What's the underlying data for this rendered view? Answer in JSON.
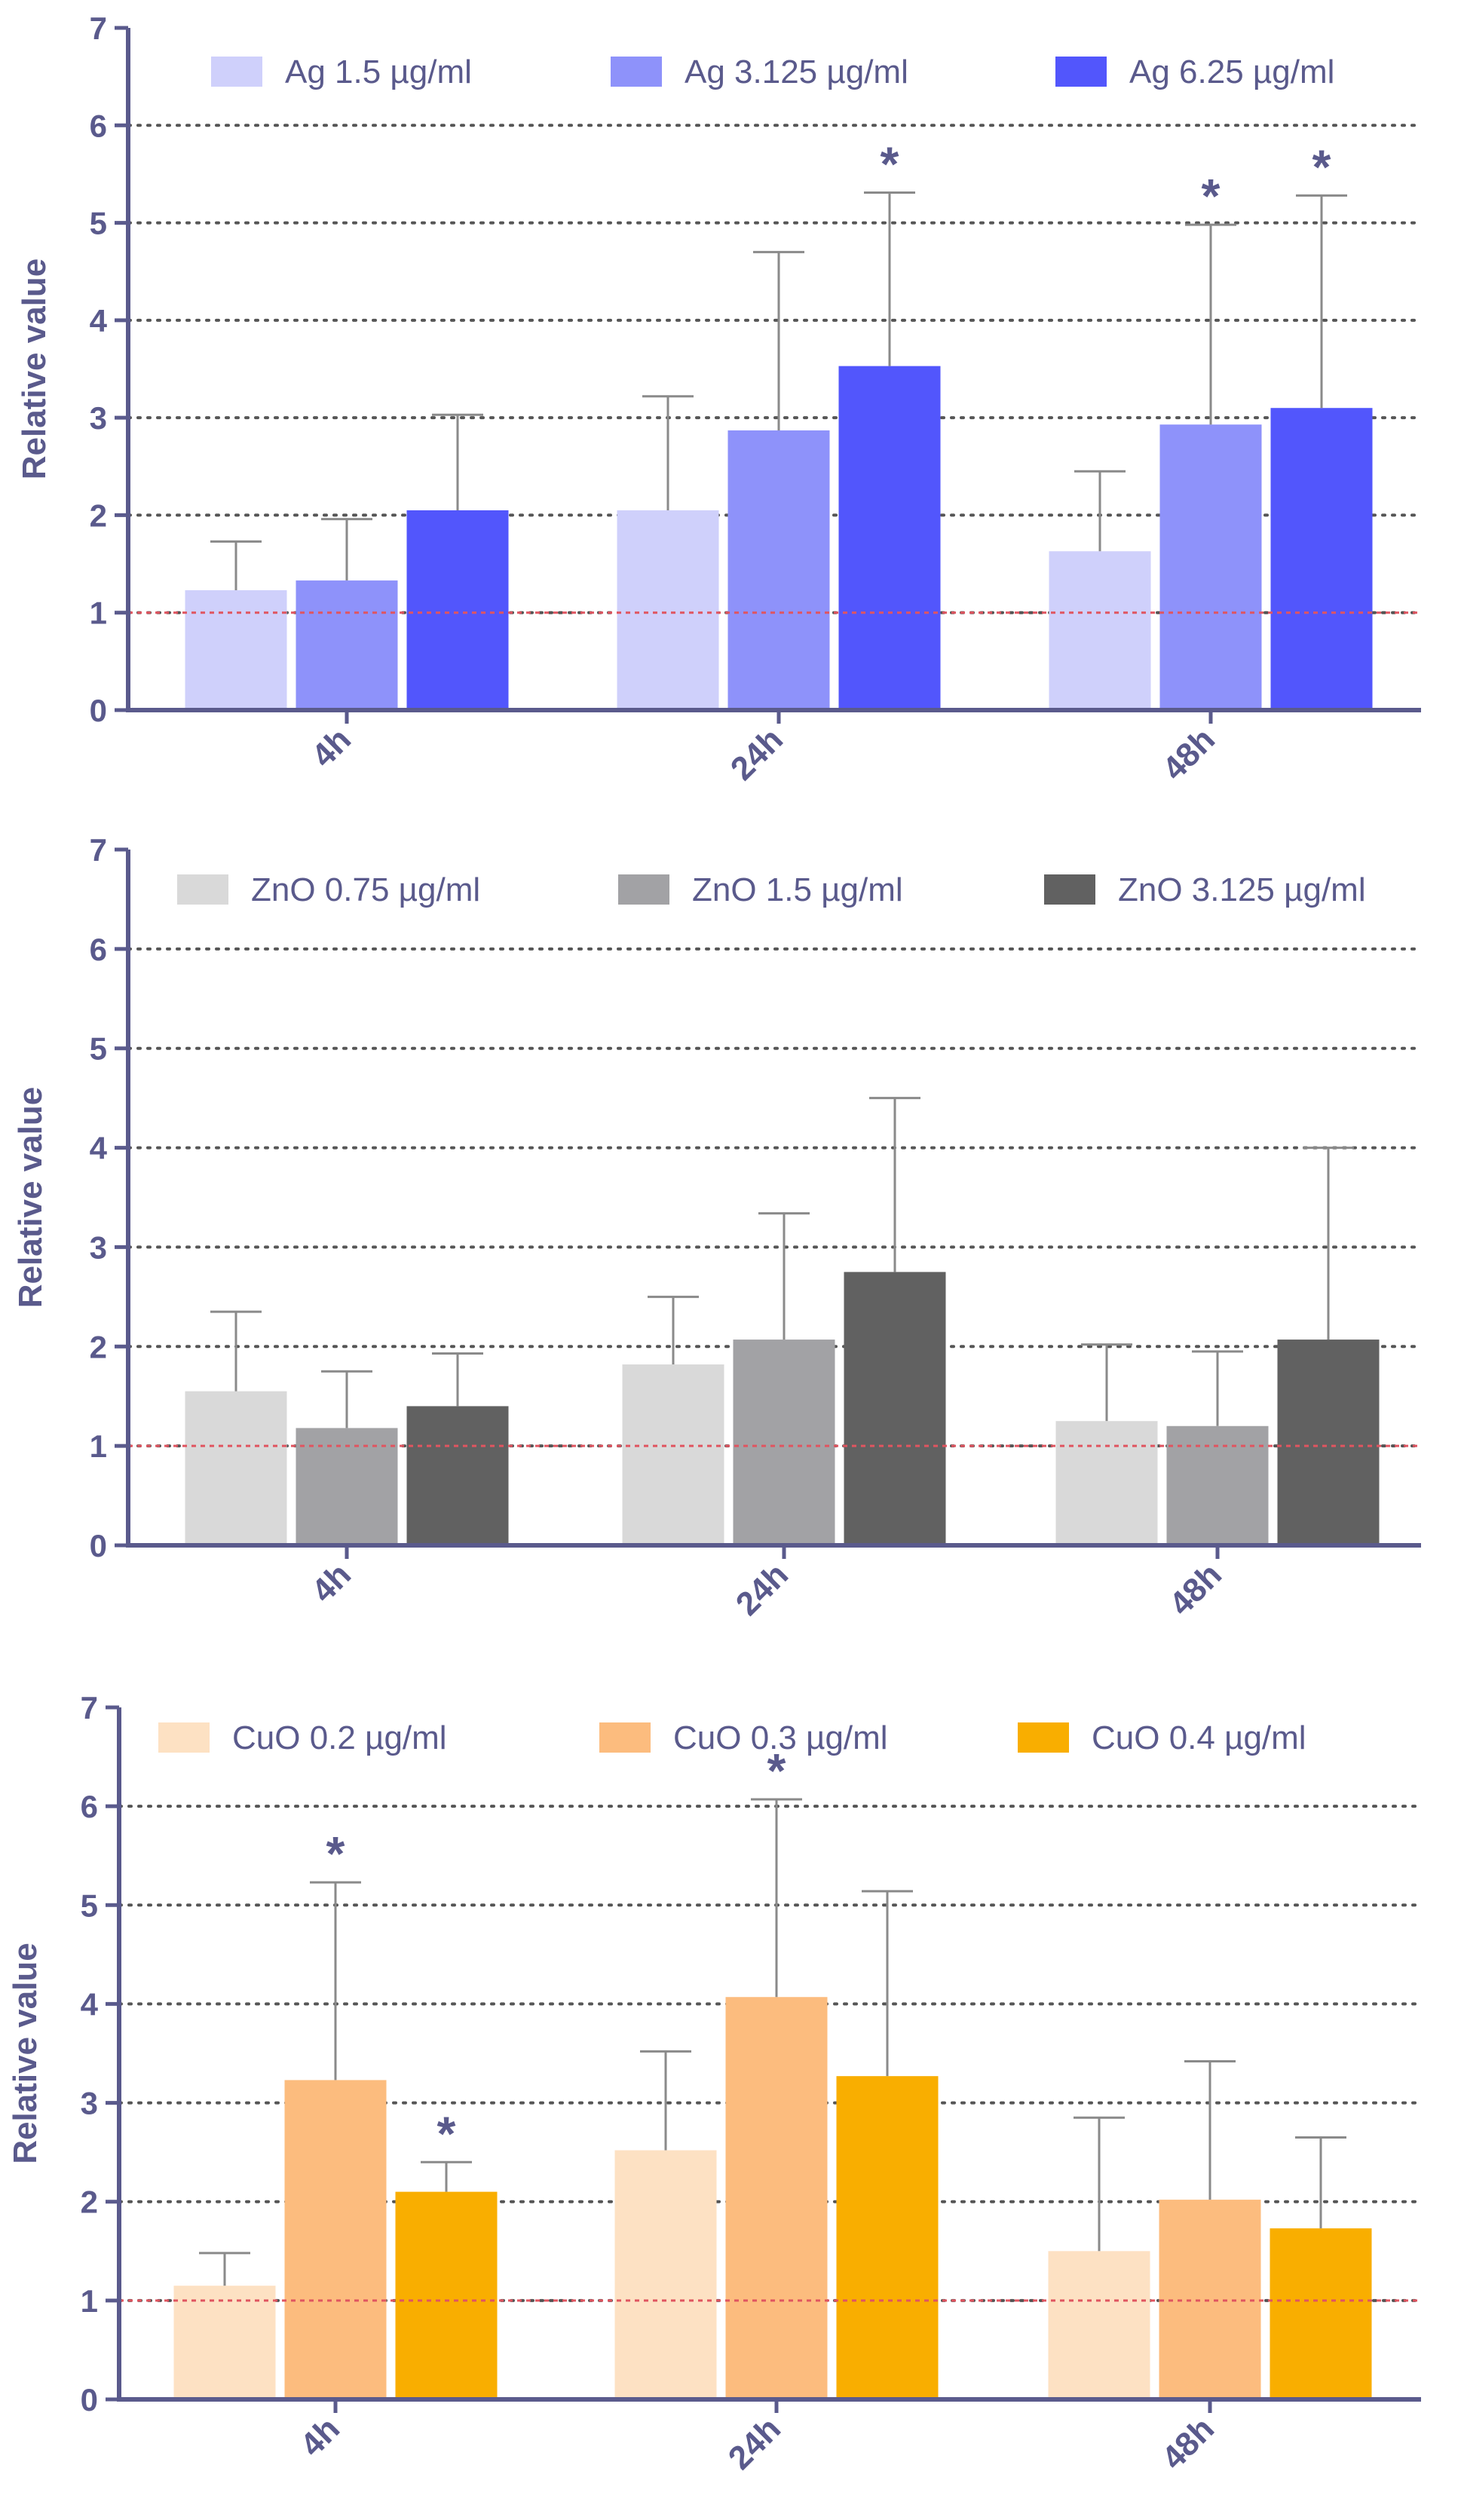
{
  "colors": {
    "axis": "#5a5a8c",
    "grid": "#555555",
    "reference_line": "#e05560",
    "error_bar": "#8a8a8a"
  },
  "chart_data": [
    {
      "type": "bar",
      "ylabel": "Relative value",
      "ylim": [
        0,
        7
      ],
      "yticks": [
        "0",
        "1",
        "2",
        "3",
        "4",
        "5",
        "6",
        "7"
      ],
      "grid": "dotted horizontal",
      "reference_value": 1,
      "legend_position": "top",
      "categories": [
        "4h",
        "24h",
        "48h"
      ],
      "series": [
        {
          "name": "Ag 1.5 µg/ml",
          "color": "#cfd0fb",
          "values": [
            1.23,
            2.05,
            1.63
          ],
          "errors": [
            0.5,
            1.17,
            0.82
          ],
          "significance": [
            "",
            "",
            ""
          ]
        },
        {
          "name": "Ag 3.125 µg/ml",
          "color": "#8e92fa",
          "values": [
            1.33,
            2.87,
            2.93
          ],
          "errors": [
            0.63,
            1.83,
            2.05
          ],
          "significance": [
            "",
            "",
            "*"
          ]
        },
        {
          "name": "Ag 6.25 µg/ml",
          "color": "#5256fc",
          "values": [
            2.05,
            3.53,
            3.1
          ],
          "errors": [
            0.98,
            1.78,
            2.18
          ],
          "significance": [
            "",
            "*",
            "*"
          ]
        }
      ]
    },
    {
      "type": "bar",
      "ylabel": "Relative value",
      "ylim": [
        0,
        7
      ],
      "yticks": [
        "0",
        "1",
        "2",
        "3",
        "4",
        "5",
        "6",
        "7"
      ],
      "grid": "dotted horizontal",
      "reference_value": 1,
      "legend_position": "top",
      "categories": [
        "4h",
        "24h",
        "48h"
      ],
      "series": [
        {
          "name": "ZnO 0.75 µg/ml",
          "color": "#d9d9d9",
          "values": [
            1.55,
            1.82,
            1.25
          ],
          "errors": [
            0.8,
            0.68,
            0.77
          ],
          "significance": [
            "",
            "",
            ""
          ]
        },
        {
          "name": "ZnO 1.5 µg/ml",
          "color": "#a2a2a5",
          "values": [
            1.18,
            2.07,
            1.2
          ],
          "errors": [
            0.57,
            1.27,
            0.75
          ],
          "significance": [
            "",
            "",
            ""
          ]
        },
        {
          "name": "ZnO 3.125 µg/ml",
          "color": "#616161",
          "values": [
            1.4,
            2.75,
            2.07
          ],
          "errors": [
            0.53,
            1.75,
            1.93
          ],
          "significance": [
            "",
            "",
            ""
          ]
        }
      ]
    },
    {
      "type": "bar",
      "ylabel": "Relative value",
      "ylim": [
        0,
        7
      ],
      "yticks": [
        "0",
        "1",
        "2",
        "3",
        "4",
        "5",
        "6",
        "7"
      ],
      "grid": "dotted horizontal",
      "reference_value": 1,
      "legend_position": "top",
      "categories": [
        "4h",
        "24h",
        "48h"
      ],
      "series": [
        {
          "name": "CuO 0.2 µg/ml",
          "color": "#fde1c3",
          "values": [
            1.15,
            2.52,
            1.5
          ],
          "errors": [
            0.33,
            1.0,
            1.35
          ],
          "significance": [
            "",
            "",
            ""
          ]
        },
        {
          "name": "CuO 0.3 µg/ml",
          "color": "#fcbc7e",
          "values": [
            3.23,
            4.07,
            2.02
          ],
          "errors": [
            2.0,
            2.0,
            1.4
          ],
          "significance": [
            "*",
            "*",
            ""
          ]
        },
        {
          "name": "CuO 0.4 µg/ml",
          "color": "#f9ae00",
          "values": [
            2.1,
            3.27,
            1.73
          ],
          "errors": [
            0.3,
            1.87,
            0.92
          ],
          "significance": [
            "*",
            "",
            ""
          ]
        }
      ]
    }
  ]
}
